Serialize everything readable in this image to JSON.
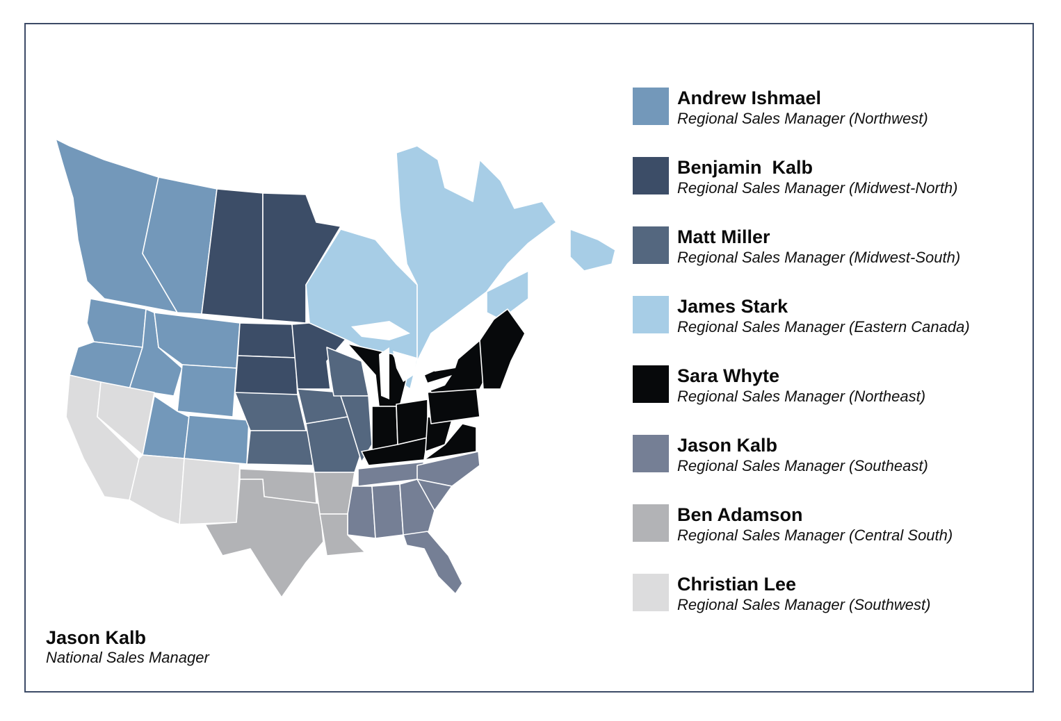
{
  "legend": [
    {
      "name": "Andrew Ishmael",
      "role": "Regional Sales Manager (Northwest)",
      "color": "#7398ba"
    },
    {
      "name": "Benjamin  Kalb",
      "role": "Regional Sales Manager (Midwest-North)",
      "color": "#3c4d67"
    },
    {
      "name": "Matt Miller",
      "role": "Regional Sales Manager (Midwest-South)",
      "color": "#54677f"
    },
    {
      "name": "James Stark",
      "role": "Regional Sales Manager (Eastern Canada)",
      "color": "#a7cde6"
    },
    {
      "name": "Sara Whyte",
      "role": "Regional Sales Manager (Northeast)",
      "color": "#07090b"
    },
    {
      "name": "Jason Kalb",
      "role": "Regional Sales Manager (Southeast)",
      "color": "#757f95"
    },
    {
      "name": "Ben Adamson",
      "role": "Regional Sales Manager (Central South)",
      "color": "#b2b3b6"
    },
    {
      "name": "Christian Lee",
      "role": "Regional Sales Manager (Southwest)",
      "color": "#dcdcdd"
    }
  ],
  "national": {
    "name": "Jason Kalb",
    "role": "National Sales Manager"
  }
}
